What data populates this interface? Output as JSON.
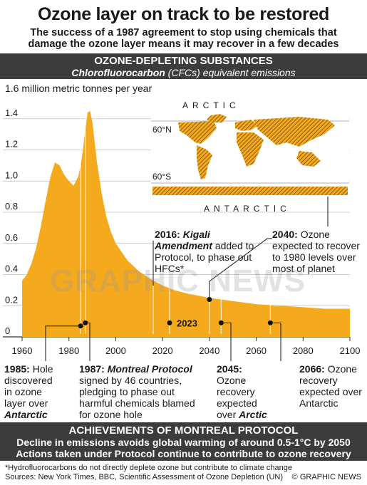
{
  "title": "Ozone layer on track to be restored",
  "subtitle": "The success of a 1987 agreement to stop using chemicals that damage the ozone layer means it may recover in a few decades",
  "section1": {
    "heading": "OZONE-DEPLETING SUBSTANCES",
    "sub_bold": "Chlorofluorocarbon",
    "sub_rest": " (CFCs) equivalent emissions"
  },
  "chart_data": {
    "type": "area",
    "ylabel": "1.6 million metric tonnes per year",
    "ylim": [
      0,
      1.6
    ],
    "xlim": [
      1960,
      2100
    ],
    "xticks": [
      "1960",
      "1980",
      "2000",
      "2020",
      "2040",
      "2060",
      "2080",
      "2100"
    ],
    "yticks": [
      "0",
      "0.2",
      "0.4",
      "0.6",
      "0.8",
      "1.0",
      "1.2",
      "1.4"
    ],
    "color": "#f5a91d",
    "x": [
      1960,
      1962,
      1964,
      1966,
      1968,
      1970,
      1972,
      1974,
      1976,
      1978,
      1980,
      1982,
      1984,
      1985,
      1986,
      1987,
      1988,
      1989,
      1990,
      1992,
      1994,
      1996,
      1998,
      2000,
      2005,
      2010,
      2015,
      2020,
      2025,
      2030,
      2040,
      2050,
      2060,
      2070,
      2080,
      2090,
      2100
    ],
    "y": [
      0.36,
      0.4,
      0.47,
      0.57,
      0.71,
      0.87,
      1.02,
      1.12,
      1.1,
      1.04,
      1.0,
      0.97,
      1.03,
      1.1,
      1.2,
      1.33,
      1.44,
      1.45,
      1.38,
      1.12,
      0.92,
      0.77,
      0.67,
      0.6,
      0.49,
      0.42,
      0.37,
      0.33,
      0.3,
      0.28,
      0.25,
      0.23,
      0.21,
      0.2,
      0.19,
      0.18,
      0.18
    ],
    "markers": [
      {
        "year": 1985,
        "y": 0.07
      },
      {
        "year": 1987,
        "y": 0.09
      },
      {
        "year": 2023,
        "y": 0.09,
        "label": "2023"
      },
      {
        "year": 2040,
        "y": 0.24
      },
      {
        "year": 2045,
        "y": 0.09
      },
      {
        "year": 2066,
        "y": 0.09
      }
    ]
  },
  "map": {
    "arctic": "ARCTIC",
    "antarctic": "ANTARCTIC",
    "lat_north": "60°N",
    "lat_south": "60°S"
  },
  "annotations": {
    "a2016": {
      "year": "2016:",
      "bold": "Kigali Amendment",
      "rest": " added to Protocol, to phase out HFCs*"
    },
    "a2040": {
      "year": "2040:",
      "rest": " Ozone expected to recover to 1980 levels over most of planet"
    },
    "a1985": {
      "year": "1985:",
      "rest": " Hole discovered in ozone layer over ",
      "bold": "Antarctic"
    },
    "a1987": {
      "year": "1987:",
      "bold": "Montreal Protocol",
      "rest": " signed by 46 countries, pledging to phase out harmful chemicals blamed for ozone hole"
    },
    "a2045": {
      "year": "2045:",
      "rest": " Ozone recovery expected over ",
      "bold": "Arctic"
    },
    "a2066": {
      "year": "2066:",
      "rest": " Ozone recovery expected over Antarctic"
    }
  },
  "watermark": "GRAPHIC NEWS",
  "section2": {
    "heading": "ACHIEVEMENTS OF MONTREAL PROTOCOL",
    "line1": "Decline in emissions avoids global warming of around 0.5-1°C by 2050",
    "line2": "Actions taken under Protocol continue to contribute to ozone recovery"
  },
  "footnote": "*Hydrofluorocarbons do not directly deplete ozone but contribute to climate change",
  "sources": "Sources: New York Times, BBC, Scientific Assessment of Ozone Depletion (UN)",
  "credit": "© GRAPHIC NEWS"
}
